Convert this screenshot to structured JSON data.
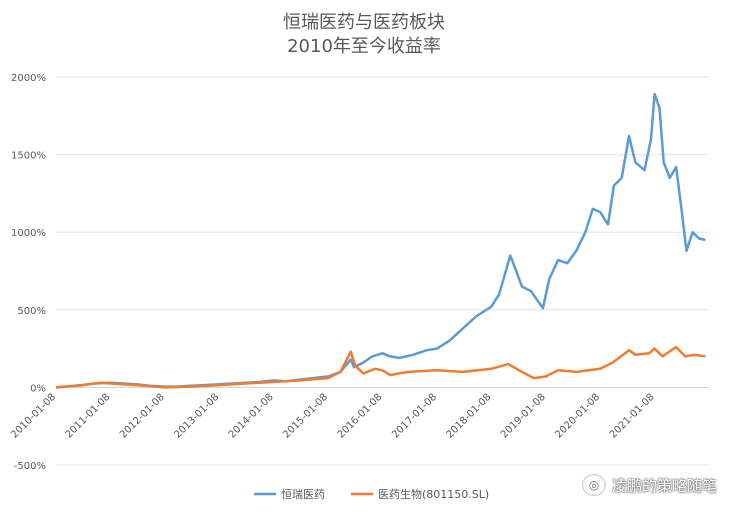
{
  "chart_data": {
    "type": "line",
    "title": "恒瑞医药与医药板块",
    "subtitle": "2010年至今收益率",
    "xlabel": "",
    "ylabel": "",
    "y_ticks": [
      "2000%",
      "1500%",
      "1000%",
      "500%",
      "0%",
      "-500%"
    ],
    "y_tick_values": [
      2000,
      1500,
      1000,
      500,
      0,
      -500
    ],
    "ylim": [
      -500,
      2000
    ],
    "x_ticks": [
      "2010-01-08",
      "2011-01-08",
      "2012-01-08",
      "2013-01-08",
      "2014-01-08",
      "2015-01-08",
      "2016-01-08",
      "2017-01-08",
      "2018-01-08",
      "2019-01-08",
      "2020-01-08",
      "2021-01-08"
    ],
    "xlim": [
      "2010-01-08",
      "2022-01-08"
    ],
    "grid": true,
    "legend_position": "bottom",
    "series": [
      {
        "name": "恒瑞医药",
        "color": "#5B9BD5",
        "points": [
          [
            "2010-01-08",
            0
          ],
          [
            "2010-04-01",
            8
          ],
          [
            "2010-07-01",
            15
          ],
          [
            "2010-10-01",
            25
          ],
          [
            "2011-01-08",
            30
          ],
          [
            "2011-04-01",
            25
          ],
          [
            "2011-07-01",
            20
          ],
          [
            "2011-10-01",
            10
          ],
          [
            "2012-01-08",
            5
          ],
          [
            "2012-04-01",
            5
          ],
          [
            "2012-07-01",
            10
          ],
          [
            "2012-10-01",
            15
          ],
          [
            "2013-01-08",
            20
          ],
          [
            "2013-04-01",
            25
          ],
          [
            "2013-07-01",
            30
          ],
          [
            "2013-10-01",
            35
          ],
          [
            "2014-01-08",
            45
          ],
          [
            "2014-04-01",
            40
          ],
          [
            "2014-07-01",
            50
          ],
          [
            "2014-10-01",
            60
          ],
          [
            "2015-01-08",
            70
          ],
          [
            "2015-04-01",
            100
          ],
          [
            "2015-06-10",
            180
          ],
          [
            "2015-07-01",
            130
          ],
          [
            "2015-09-01",
            160
          ],
          [
            "2015-11-01",
            200
          ],
          [
            "2016-01-08",
            220
          ],
          [
            "2016-03-01",
            200
          ],
          [
            "2016-05-01",
            190
          ],
          [
            "2016-08-01",
            210
          ],
          [
            "2016-11-01",
            240
          ],
          [
            "2017-01-08",
            250
          ],
          [
            "2017-04-01",
            300
          ],
          [
            "2017-07-01",
            380
          ],
          [
            "2017-10-01",
            460
          ],
          [
            "2018-01-08",
            520
          ],
          [
            "2018-03-01",
            600
          ],
          [
            "2018-05-15",
            850
          ],
          [
            "2018-06-20",
            760
          ],
          [
            "2018-08-01",
            650
          ],
          [
            "2018-10-01",
            620
          ],
          [
            "2018-12-20",
            510
          ],
          [
            "2019-02-01",
            700
          ],
          [
            "2019-04-01",
            820
          ],
          [
            "2019-06-01",
            800
          ],
          [
            "2019-08-01",
            880
          ],
          [
            "2019-10-01",
            1000
          ],
          [
            "2019-11-20",
            1150
          ],
          [
            "2020-01-08",
            1130
          ],
          [
            "2020-03-01",
            1050
          ],
          [
            "2020-04-10",
            1300
          ],
          [
            "2020-06-01",
            1350
          ],
          [
            "2020-07-20",
            1620
          ],
          [
            "2020-09-01",
            1450
          ],
          [
            "2020-11-01",
            1400
          ],
          [
            "2020-12-15",
            1600
          ],
          [
            "2021-01-08",
            1890
          ],
          [
            "2021-02-10",
            1800
          ],
          [
            "2021-03-10",
            1450
          ],
          [
            "2021-04-20",
            1350
          ],
          [
            "2021-06-01",
            1420
          ],
          [
            "2021-07-01",
            1200
          ],
          [
            "2021-08-10",
            880
          ],
          [
            "2021-09-20",
            1000
          ],
          [
            "2021-11-01",
            960
          ],
          [
            "2021-12-15",
            950
          ]
        ]
      },
      {
        "name": "医药生物(801150.SL)",
        "color": "#ED7D31",
        "points": [
          [
            "2010-01-08",
            0
          ],
          [
            "2010-06-01",
            10
          ],
          [
            "2010-11-01",
            30
          ],
          [
            "2011-01-08",
            25
          ],
          [
            "2011-07-01",
            15
          ],
          [
            "2012-01-08",
            0
          ],
          [
            "2012-07-01",
            5
          ],
          [
            "2013-01-08",
            15
          ],
          [
            "2013-07-01",
            25
          ],
          [
            "2014-01-08",
            35
          ],
          [
            "2014-07-01",
            45
          ],
          [
            "2015-01-08",
            60
          ],
          [
            "2015-04-01",
            100
          ],
          [
            "2015-06-10",
            230
          ],
          [
            "2015-07-10",
            140
          ],
          [
            "2015-09-01",
            90
          ],
          [
            "2015-11-20",
            120
          ],
          [
            "2016-01-08",
            110
          ],
          [
            "2016-03-01",
            80
          ],
          [
            "2016-07-01",
            100
          ],
          [
            "2017-01-08",
            110
          ],
          [
            "2017-07-01",
            100
          ],
          [
            "2018-01-08",
            120
          ],
          [
            "2018-05-01",
            150
          ],
          [
            "2018-08-01",
            100
          ],
          [
            "2018-10-20",
            60
          ],
          [
            "2019-01-08",
            70
          ],
          [
            "2019-04-01",
            110
          ],
          [
            "2019-08-01",
            100
          ],
          [
            "2020-01-08",
            120
          ],
          [
            "2020-04-01",
            160
          ],
          [
            "2020-07-20",
            240
          ],
          [
            "2020-09-01",
            210
          ],
          [
            "2020-12-01",
            220
          ],
          [
            "2021-01-08",
            250
          ],
          [
            "2021-03-01",
            200
          ],
          [
            "2021-06-01",
            260
          ],
          [
            "2021-08-01",
            200
          ],
          [
            "2021-10-01",
            210
          ],
          [
            "2021-12-15",
            200
          ]
        ]
      }
    ]
  },
  "watermark": {
    "icon": "wechat-icon",
    "text": "凌鹏的策略随笔"
  }
}
